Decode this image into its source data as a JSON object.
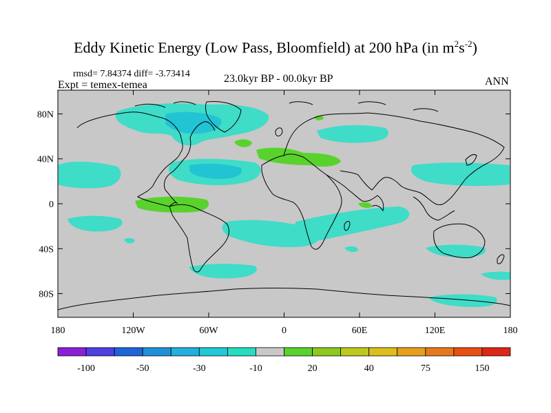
{
  "title": {
    "main": "Eddy Kinetic Energy (Low Pass, Bloomfield) at 200 hPa (in m",
    "unit_exp1": "2",
    "unit_s": "s",
    "unit_exp2": "-2",
    "close": ")"
  },
  "stats": "rmsd= 7.84374 diff= -3.73414",
  "expt": "Expt = temex-temea",
  "period": "23.0kyr BP - 00.0kyr BP",
  "season": "ANN",
  "lat_ticks": [
    {
      "value": 80,
      "label": "80N"
    },
    {
      "value": 40,
      "label": "40N"
    },
    {
      "value": 0,
      "label": "0"
    },
    {
      "value": -40,
      "label": "40S"
    },
    {
      "value": -80,
      "label": "80S"
    }
  ],
  "lon_ticks": [
    {
      "value": -180,
      "label": "180"
    },
    {
      "value": -120,
      "label": "120W"
    },
    {
      "value": -60,
      "label": "60W"
    },
    {
      "value": 0,
      "label": "0"
    },
    {
      "value": 60,
      "label": "60E"
    },
    {
      "value": 120,
      "label": "120E"
    },
    {
      "value": 180,
      "label": "180"
    }
  ],
  "colorbar": {
    "colors": [
      "#8c1ed6",
      "#4f3ee0",
      "#1e64d8",
      "#2090d8",
      "#22b0e0",
      "#20c8d8",
      "#28dcc0",
      "#c8c8c8",
      "#5ad22e",
      "#8cc81e",
      "#bec81e",
      "#dcbe1e",
      "#e6a01e",
      "#e6781e",
      "#e65014",
      "#dc2814"
    ],
    "labels": [
      {
        "after": 1,
        "text": "-100"
      },
      {
        "after": 3,
        "text": "-50"
      },
      {
        "after": 5,
        "text": "-30"
      },
      {
        "after": 7,
        "text": "-10"
      },
      {
        "after": 9,
        "text": "20"
      },
      {
        "after": 11,
        "text": "40"
      },
      {
        "after": 13,
        "text": "75"
      },
      {
        "after": 15,
        "text": "150"
      }
    ]
  },
  "colors": {
    "background": "#c8c8c8",
    "cyan_fill": "#3fdcc8",
    "blue_fill": "#22c4d4",
    "green_fill": "#5ad22e",
    "coast": "#000000"
  }
}
